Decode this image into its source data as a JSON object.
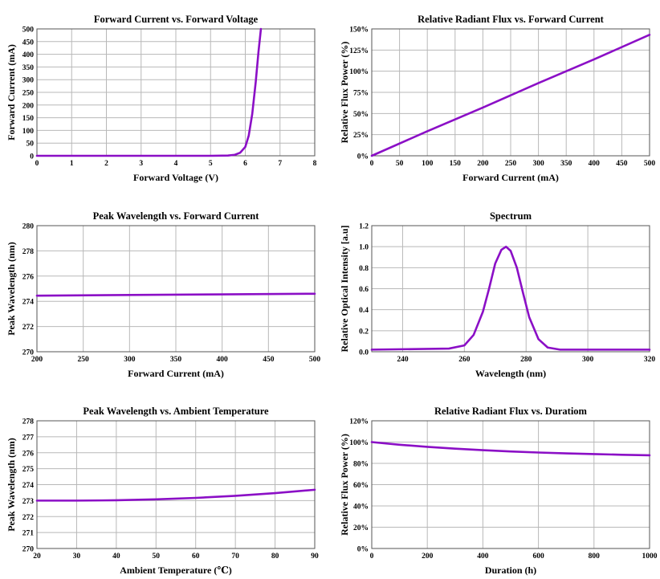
{
  "colors": {
    "series": "#8B0FC6",
    "grid": "#b8b8b8",
    "frame": "#555555"
  },
  "chart_data": [
    {
      "type": "line",
      "title": "Forward Current vs. Forward Voltage",
      "xlabel": "Forward Voltage (V)",
      "ylabel": "Forward Current (mA)",
      "xlim": [
        0,
        8
      ],
      "ylim": [
        0,
        500
      ],
      "xticks": [
        0,
        1,
        2,
        3,
        4,
        5,
        6,
        7,
        8
      ],
      "yticks": [
        0,
        50,
        100,
        150,
        200,
        250,
        300,
        350,
        400,
        450,
        500
      ],
      "ytick_labels": [
        "0",
        "50",
        "100",
        "150",
        "200",
        "250",
        "300",
        "350",
        "400",
        "450",
        "500"
      ],
      "grid": true,
      "x": [
        0,
        1,
        2,
        3,
        4,
        5,
        5.5,
        5.7,
        5.85,
        6.0,
        6.1,
        6.2,
        6.3,
        6.38,
        6.45
      ],
      "y": [
        0,
        0,
        0,
        0,
        0,
        0,
        1,
        4,
        12,
        35,
        80,
        165,
        290,
        410,
        500
      ]
    },
    {
      "type": "line",
      "title": "Relative Radiant Flux vs. Forward Current",
      "xlabel": "Forward Current (mA)",
      "ylabel": "Relative Flux Power (%)",
      "xlim": [
        0,
        500
      ],
      "ylim": [
        0,
        150
      ],
      "xticks": [
        0,
        50,
        100,
        150,
        200,
        250,
        300,
        350,
        400,
        450,
        500
      ],
      "yticks": [
        0,
        25,
        50,
        75,
        100,
        125,
        150
      ],
      "ytick_labels": [
        "0%",
        "25%",
        "50%",
        "75%",
        "100%",
        "125%",
        "150%"
      ],
      "grid": true,
      "x": [
        0,
        100,
        200,
        300,
        400,
        500
      ],
      "y": [
        0,
        29,
        57,
        86,
        114,
        143
      ]
    },
    {
      "type": "line",
      "title": "Peak Wavelength vs. Forward Current",
      "xlabel": "Forward Current (mA)",
      "ylabel": "Peak Wavelength (nm)",
      "xlim": [
        200,
        500
      ],
      "ylim": [
        270,
        280
      ],
      "xticks": [
        200,
        250,
        300,
        350,
        400,
        450,
        500
      ],
      "yticks": [
        270,
        272,
        274,
        276,
        278,
        280
      ],
      "ytick_labels": [
        "270",
        "272",
        "274",
        "276",
        "278",
        "280"
      ],
      "grid": true,
      "x": [
        200,
        300,
        400,
        500
      ],
      "y": [
        274.45,
        274.5,
        274.55,
        274.6
      ]
    },
    {
      "type": "line",
      "title": "Spectrum",
      "xlabel": "Wavelength (nm)",
      "ylabel": "Relative Optical Intensity [a.u]",
      "xlim": [
        230,
        320
      ],
      "ylim": [
        0,
        1.2
      ],
      "xticks": [
        240,
        260,
        280,
        300,
        320
      ],
      "yticks": [
        0,
        0.2,
        0.4,
        0.6,
        0.8,
        1.0,
        1.2
      ],
      "ytick_labels": [
        "0.0",
        "0.2",
        "0.4",
        "0.6",
        "0.8",
        "1.0",
        "1.2"
      ],
      "grid": true,
      "x": [
        230,
        255,
        260,
        263,
        266,
        268,
        270,
        272,
        273.5,
        275,
        277,
        279,
        281,
        284,
        287,
        291,
        320
      ],
      "y": [
        0.02,
        0.03,
        0.06,
        0.16,
        0.38,
        0.6,
        0.84,
        0.97,
        1.0,
        0.96,
        0.8,
        0.56,
        0.33,
        0.12,
        0.04,
        0.02,
        0.02
      ]
    },
    {
      "type": "line",
      "title": "Peak Wavelength vs. Ambient Temperature",
      "xlabel": "Ambient Temperature (℃)",
      "ylabel": "Peak Wavelength (nm)",
      "xlim": [
        20,
        90
      ],
      "ylim": [
        270,
        278
      ],
      "xticks": [
        20,
        30,
        40,
        50,
        60,
        70,
        80,
        90
      ],
      "yticks": [
        270,
        271,
        272,
        273,
        274,
        275,
        276,
        277,
        278
      ],
      "ytick_labels": [
        "270",
        "271",
        "272",
        "273",
        "274",
        "275",
        "276",
        "277",
        "278"
      ],
      "grid": true,
      "x": [
        20,
        30,
        40,
        50,
        60,
        70,
        80,
        90
      ],
      "y": [
        273.0,
        273.0,
        273.02,
        273.08,
        273.17,
        273.3,
        273.47,
        273.68
      ]
    },
    {
      "type": "line",
      "title": "Relative Radiant Flux vs. Duratiom",
      "xlabel": "Duration (h)",
      "ylabel": "Relative Flux Power (%)",
      "xlim": [
        0,
        1000
      ],
      "ylim": [
        0,
        120
      ],
      "xticks": [
        0,
        200,
        400,
        600,
        800,
        1000
      ],
      "yticks": [
        0,
        20,
        40,
        60,
        80,
        100,
        120
      ],
      "ytick_labels": [
        "0%",
        "20%",
        "40%",
        "60%",
        "80%",
        "100%",
        "120%"
      ],
      "grid": true,
      "x": [
        0,
        100,
        200,
        300,
        400,
        500,
        600,
        700,
        800,
        900,
        1000
      ],
      "y": [
        100,
        97.5,
        95.5,
        93.8,
        92.4,
        91.2,
        90.2,
        89.4,
        88.7,
        88.1,
        87.6
      ]
    }
  ]
}
